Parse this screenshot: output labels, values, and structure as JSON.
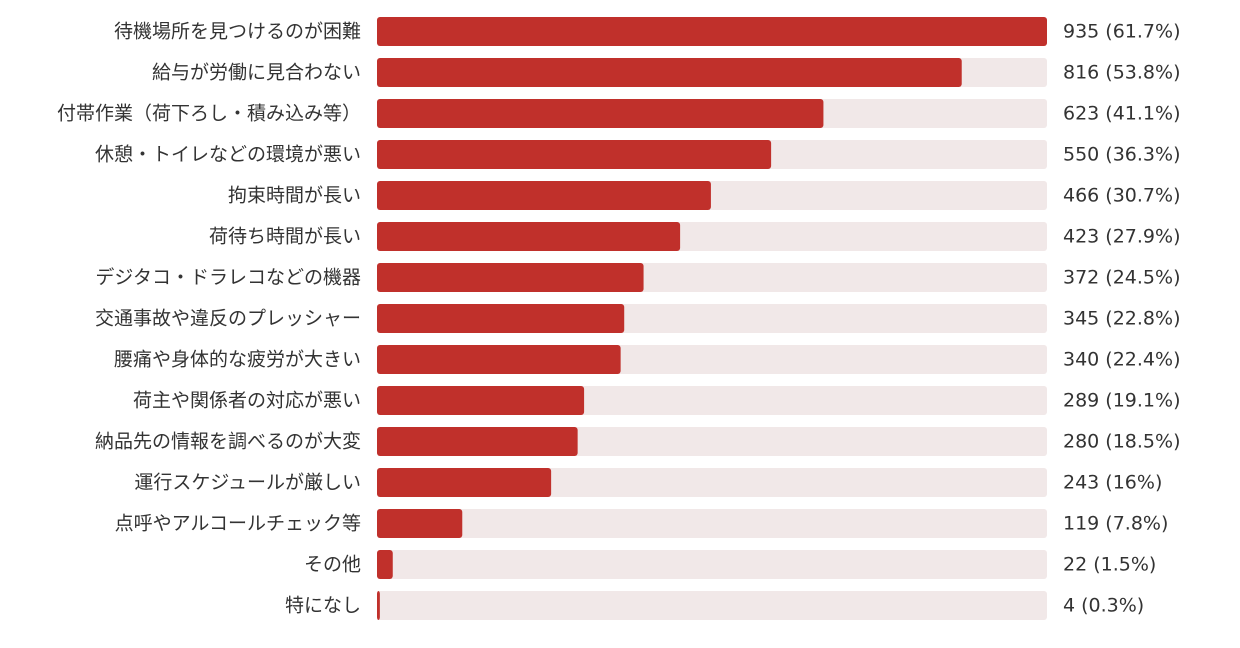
{
  "chart_data": {
    "type": "bar",
    "orientation": "horizontal",
    "categories": [
      "待機場所を見つけるのが困難",
      "給与が労働に見合わない",
      "付帯作業（荷下ろし・積み込み等）",
      "休憩・トイレなどの環境が悪い",
      "拘束時間が長い",
      "荷待ち時間が長い",
      "デジタコ・ドラレコなどの機器",
      "交通事故や違反のプレッシャー",
      "腰痛や身体的な疲労が大きい",
      "荷主や関係者の対応が悪い",
      "納品先の情報を調べるのが大変",
      "運行スケジュールが厳しい",
      "点呼やアルコールチェック等",
      "その他",
      "特になし"
    ],
    "values": [
      935,
      816,
      623,
      550,
      466,
      423,
      372,
      345,
      340,
      289,
      280,
      243,
      119,
      22,
      4
    ],
    "value_labels": [
      "935 (61.7%)",
      "816 (53.8%)",
      "623 (41.1%)",
      "550 (36.3%)",
      "466 (30.7%)",
      "423 (27.9%)",
      "372 (24.5%)",
      "345 (22.8%)",
      "340 (22.4%)",
      "289 (19.1%)",
      "280 (18.5%)",
      "243 (16%)",
      "119 (7.8%)",
      "22 (1.5%)",
      "4 (0.3%)"
    ],
    "xlim": [
      0,
      935
    ],
    "grid": false,
    "legend": "none",
    "colors": {
      "bar": "#c0302b",
      "track": "#f1e8e8",
      "text": "#333333"
    }
  }
}
